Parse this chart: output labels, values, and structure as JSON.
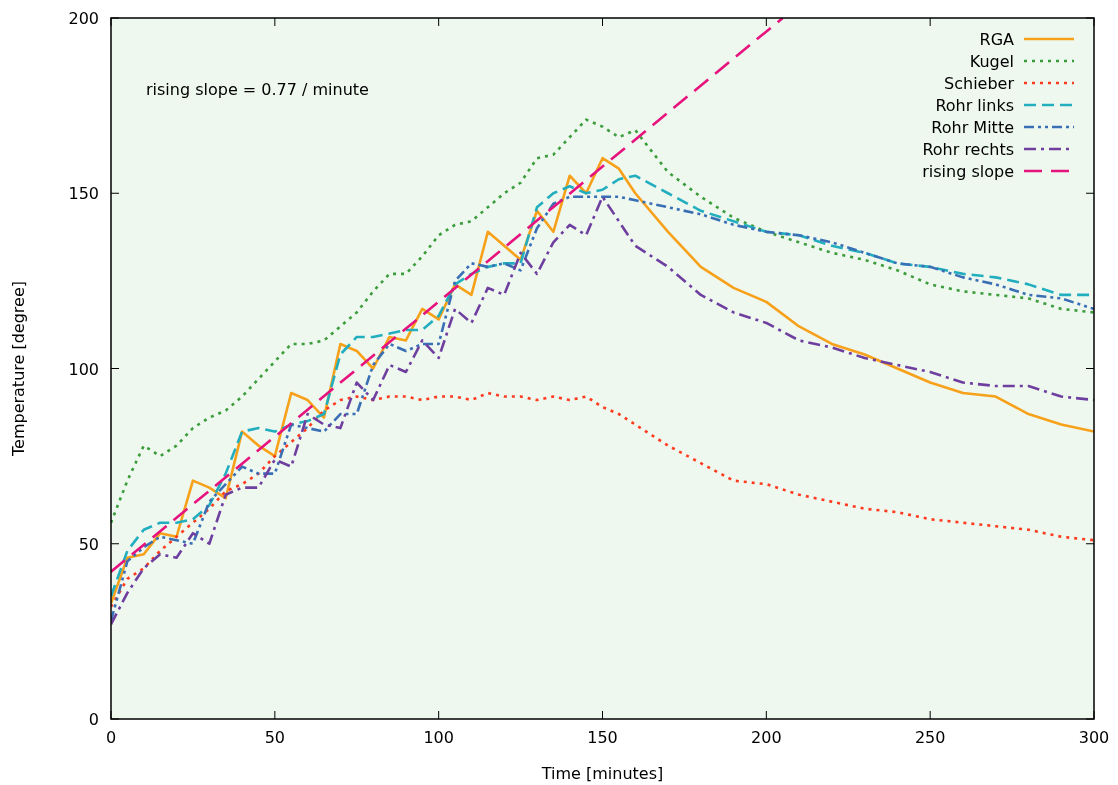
{
  "chart_data": {
    "type": "line",
    "xlabel": "Time [minutes]",
    "ylabel": "Temperature [degree]",
    "annotations": [
      "rising slope = 0.77 / minute"
    ],
    "x": [
      0,
      5,
      10,
      15,
      20,
      25,
      30,
      35,
      40,
      45,
      50,
      55,
      60,
      65,
      70,
      75,
      80,
      85,
      90,
      95,
      100,
      105,
      110,
      115,
      120,
      125,
      130,
      135,
      140,
      145,
      150,
      155,
      160,
      170,
      180,
      190,
      200,
      210,
      220,
      230,
      240,
      250,
      260,
      270,
      280,
      290,
      300
    ],
    "xlim": [
      0,
      300
    ],
    "xticks": [
      0,
      50,
      100,
      150,
      200,
      250,
      300
    ],
    "ylim": [
      0,
      200
    ],
    "yticks": [
      0,
      50,
      100,
      150,
      200
    ],
    "legend": "top right",
    "series": [
      {
        "name": "RGA",
        "color": "#f7a11a",
        "line_style": "solid",
        "values": [
          33,
          46,
          47,
          53,
          52,
          68,
          66,
          63,
          82,
          78,
          75,
          93,
          91,
          86,
          107,
          105,
          100,
          109,
          108,
          117,
          114,
          124,
          121,
          139,
          135,
          131,
          145,
          139,
          155,
          150,
          160,
          157,
          150,
          139,
          129,
          123,
          119,
          112,
          107,
          104,
          100,
          96,
          93,
          92,
          87,
          84,
          82
        ]
      },
      {
        "name": "Kugel",
        "color": "#3a9c3a",
        "line_style": "dotted",
        "values": [
          56,
          68,
          78,
          75,
          78,
          83,
          86,
          88,
          92,
          97,
          102,
          107,
          107,
          108,
          112,
          116,
          122,
          127,
          127,
          132,
          138,
          141,
          142,
          146,
          150,
          153,
          160,
          161,
          166,
          171,
          169,
          166,
          168,
          156,
          149,
          143,
          139,
          136,
          133,
          131,
          128,
          124,
          122,
          121,
          120,
          117,
          116
        ]
      },
      {
        "name": "Schieber",
        "color": "#ff3b1f",
        "line_style": "dotted",
        "values": [
          32,
          40,
          43,
          48,
          52,
          56,
          60,
          65,
          67,
          70,
          75,
          79,
          83,
          88,
          91,
          92,
          91,
          92,
          92,
          91,
          92,
          92,
          91,
          93,
          92,
          92,
          91,
          92,
          91,
          92,
          89,
          87,
          84,
          78,
          73,
          68,
          67,
          64,
          62,
          60,
          59,
          57,
          56,
          55,
          54,
          52,
          51
        ]
      },
      {
        "name": "Rohr links",
        "color": "#22aebf",
        "line_style": "dashed",
        "values": [
          35,
          48,
          54,
          56,
          56,
          57,
          61,
          70,
          82,
          83,
          82,
          84,
          85,
          87,
          104,
          109,
          109,
          110,
          111,
          111,
          115,
          124,
          127,
          129,
          130,
          130,
          146,
          150,
          152,
          150,
          151,
          154,
          155,
          150,
          145,
          142,
          139,
          138,
          135,
          133,
          130,
          129,
          127,
          126,
          124,
          121,
          121
        ]
      },
      {
        "name": "Rohr Mitte",
        "color": "#3a6fb5",
        "line_style": "dashdotdot",
        "values": [
          28,
          45,
          49,
          52,
          51,
          50,
          62,
          67,
          72,
          70,
          70,
          84,
          83,
          82,
          87,
          87,
          101,
          107,
          105,
          107,
          107,
          125,
          130,
          129,
          130,
          128,
          140,
          147,
          149,
          149,
          149,
          149,
          148,
          146,
          144,
          141,
          139,
          138,
          136,
          133,
          130,
          129,
          126,
          124,
          121,
          120,
          117
        ]
      },
      {
        "name": "Rohr rechts",
        "color": "#6f3fa0",
        "line_style": "dashdot",
        "values": [
          27,
          36,
          43,
          47,
          46,
          53,
          50,
          64,
          66,
          66,
          74,
          72,
          87,
          84,
          83,
          96,
          91,
          101,
          99,
          108,
          103,
          117,
          113,
          123,
          121,
          133,
          127,
          136,
          141,
          138,
          149,
          142,
          135,
          129,
          121,
          116,
          113,
          108,
          106,
          103,
          101,
          99,
          96,
          95,
          95,
          92,
          91
        ]
      },
      {
        "name": "rising slope",
        "color": "#e6127e",
        "line_style": "longdash",
        "x": [
          0,
          205
        ],
        "values": [
          42,
          200
        ]
      }
    ]
  }
}
